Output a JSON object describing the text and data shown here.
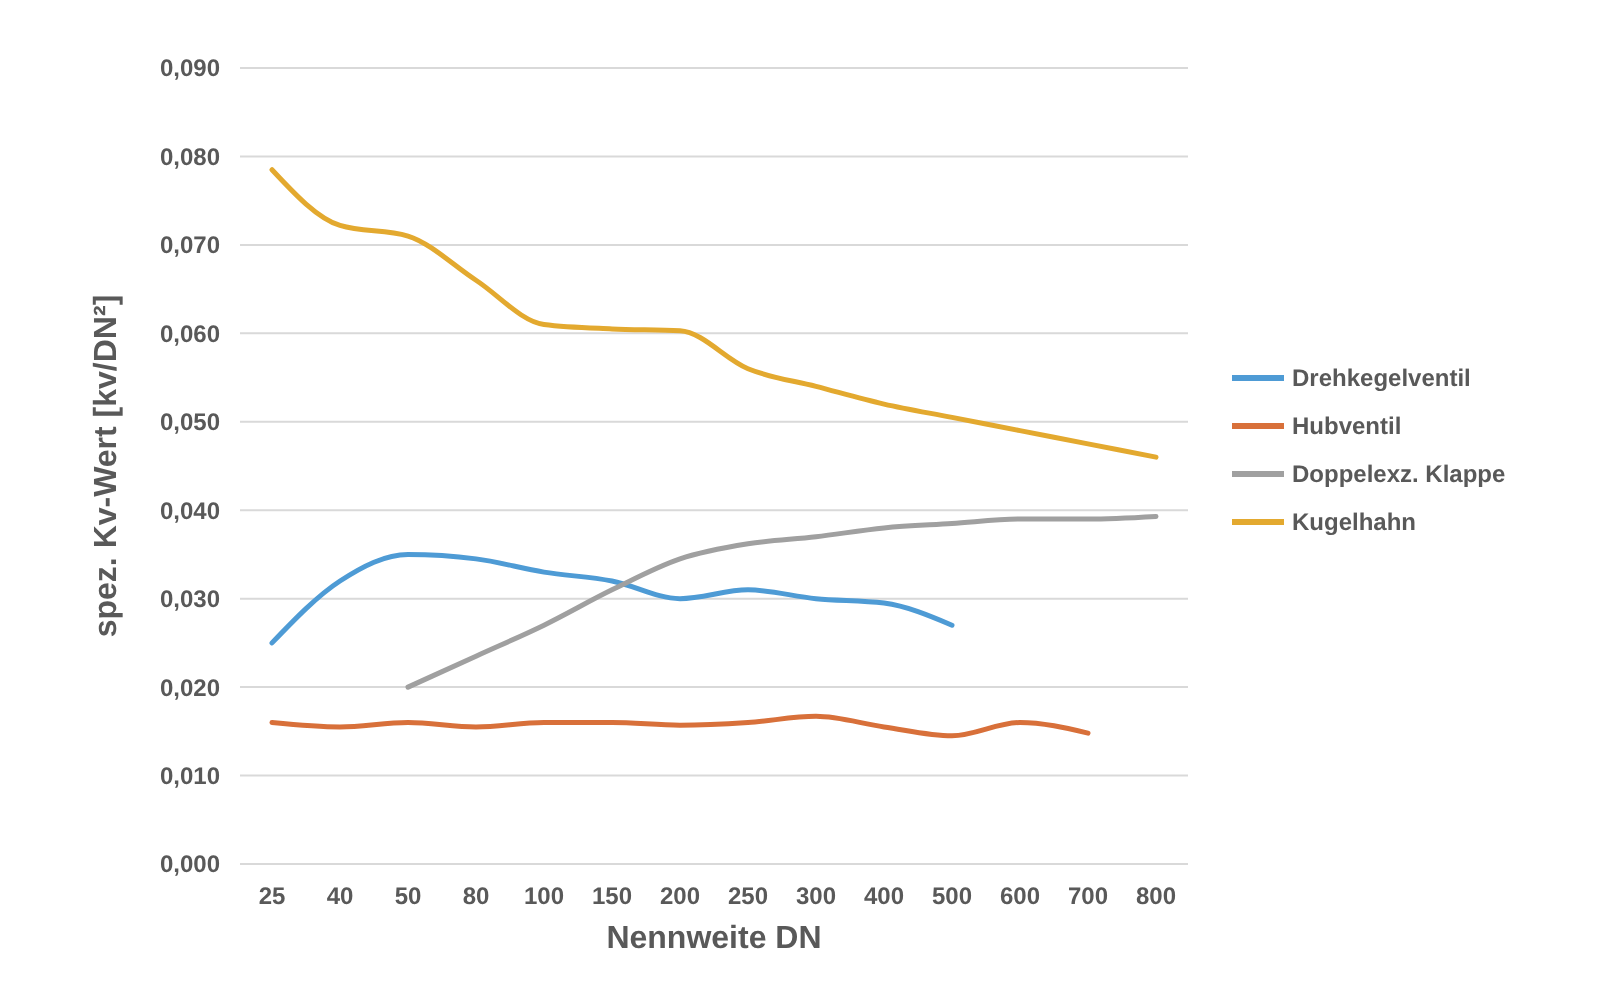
{
  "chart_data": {
    "type": "line",
    "xlabel": "Nennweite DN",
    "ylabel": "spez. Kv-Wert [kv/DN²]",
    "categories": [
      "25",
      "40",
      "50",
      "80",
      "100",
      "150",
      "200",
      "250",
      "300",
      "400",
      "500",
      "600",
      "700",
      "800"
    ],
    "series": [
      {
        "name": "Drehkegelventil",
        "color": "#4e9bd5",
        "values": [
          0.025,
          0.032,
          0.035,
          0.0345,
          0.033,
          0.032,
          0.03,
          0.031,
          0.03,
          0.0295,
          0.027,
          null,
          null,
          null
        ]
      },
      {
        "name": "Hubventil",
        "color": "#d8703a",
        "values": [
          0.016,
          0.0155,
          0.016,
          0.0155,
          0.016,
          0.016,
          0.0157,
          0.016,
          0.0167,
          0.0155,
          0.0145,
          0.016,
          0.0148,
          null
        ]
      },
      {
        "name": "Doppelexz. Klappe",
        "color": "#a0a0a0",
        "values": [
          null,
          null,
          0.02,
          0.0235,
          0.027,
          0.031,
          0.0345,
          0.0362,
          0.037,
          0.038,
          0.0385,
          0.039,
          0.039,
          0.0393
        ]
      },
      {
        "name": "Kugelhahn",
        "color": "#e3a92f",
        "values": [
          0.0785,
          0.0722,
          0.071,
          0.066,
          0.061,
          0.0605,
          0.0603,
          0.056,
          0.054,
          0.052,
          0.0505,
          0.049,
          0.0475,
          0.046
        ]
      }
    ],
    "ylim": [
      0,
      0.09
    ],
    "yticks": [
      {
        "value": 0,
        "label": "0,000"
      },
      {
        "value": 0.01,
        "label": "0,010"
      },
      {
        "value": 0.02,
        "label": "0,020"
      },
      {
        "value": 0.03,
        "label": "0,030"
      },
      {
        "value": 0.04,
        "label": "0,040"
      },
      {
        "value": 0.05,
        "label": "0,050"
      },
      {
        "value": 0.06,
        "label": "0,060"
      },
      {
        "value": 0.07,
        "label": "0,070"
      },
      {
        "value": 0.08,
        "label": "0,080"
      },
      {
        "value": 0.09,
        "label": "0,090"
      }
    ],
    "grid": "y",
    "legend": "right",
    "marker": "none",
    "line_style": "solid"
  }
}
